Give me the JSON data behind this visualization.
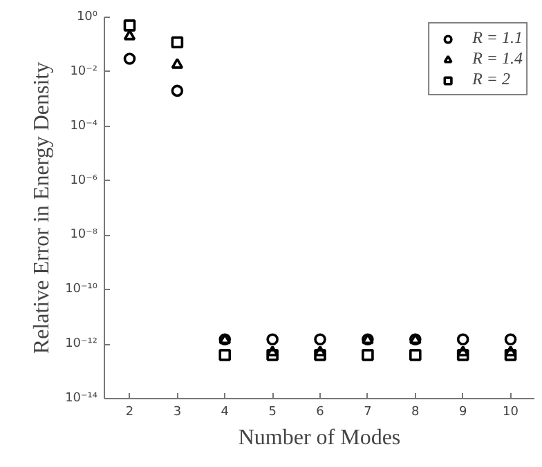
{
  "chart_data": {
    "type": "scatter",
    "xlabel": "Number of Modes",
    "ylabel": "Relative Error in Energy Density",
    "x": [
      2,
      3,
      4,
      5,
      6,
      7,
      8,
      9,
      10
    ],
    "series": [
      {
        "name": "R = 1.1",
        "color": "#000000",
        "marker": "circle",
        "values": [
          0.03,
          0.002,
          1.5e-12,
          1.5e-12,
          1.5e-12,
          1.5e-12,
          1.5e-12,
          1.5e-12,
          1.5e-12
        ]
      },
      {
        "name": "R = 1.4",
        "color": "#000000",
        "marker": "triangle",
        "values": [
          0.2,
          0.018,
          1.4e-12,
          5e-13,
          5e-13,
          1.4e-12,
          1.4e-12,
          5e-13,
          5e-13
        ]
      },
      {
        "name": "R = 2",
        "color": "#000000",
        "marker": "square",
        "values": [
          0.5,
          0.12,
          4e-13,
          4e-13,
          4e-13,
          4e-13,
          4e-13,
          4e-13,
          4e-13
        ]
      }
    ],
    "log": "y",
    "xlim": [
      1.47,
      10.5
    ],
    "ylim": [
      1e-14,
      1
    ],
    "xticks": [
      2,
      3,
      4,
      5,
      6,
      7,
      8,
      9,
      10
    ],
    "yticks": [
      {
        "value": 1e-14,
        "label": "10⁻¹⁴"
      },
      {
        "value": 1e-12,
        "label": "10⁻¹²"
      },
      {
        "value": 1e-10,
        "label": "10⁻¹⁰"
      },
      {
        "value": 1e-08,
        "label": "10⁻⁸"
      },
      {
        "value": 1e-06,
        "label": "10⁻⁶"
      },
      {
        "value": 0.0001,
        "label": "10⁻⁴"
      },
      {
        "value": 0.01,
        "label": "10⁻²"
      },
      {
        "value": 1,
        "label": "10⁰"
      }
    ],
    "grid": false,
    "legend": "top right"
  }
}
